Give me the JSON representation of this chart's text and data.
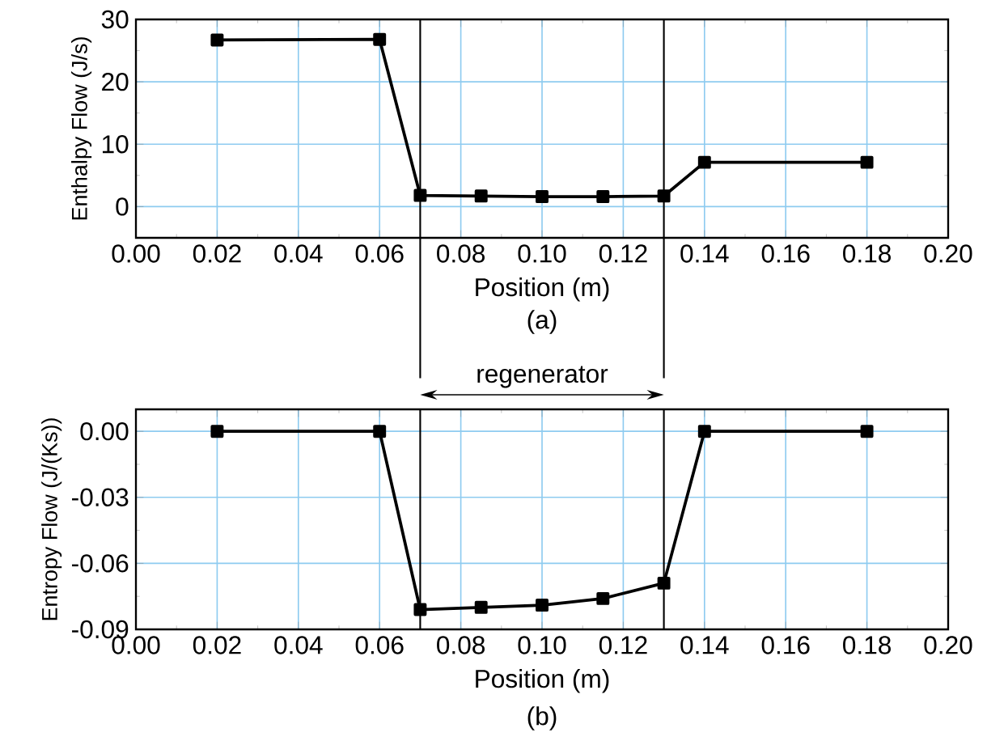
{
  "chart_data": [
    {
      "type": "line",
      "xlabel": "Position (m)",
      "ylabel": "Enthalpy Flow (J/s)",
      "x": [
        0.02,
        0.06,
        0.07,
        0.085,
        0.1,
        0.115,
        0.13,
        0.14,
        0.18
      ],
      "series": [
        {
          "color": "#000000",
          "values": [
            26.7,
            26.8,
            1.8,
            1.7,
            1.6,
            1.6,
            1.7,
            7.1,
            7.1
          ]
        }
      ],
      "xlim": [
        0,
        0.2
      ],
      "xticks": [
        {
          "value": 0,
          "label": "0.00"
        },
        0.02,
        0.04,
        0.06,
        0.08,
        {
          "value": 0.1,
          "label": "0.10"
        },
        0.12,
        0.14,
        0.16,
        0.18,
        {
          "value": 0.2,
          "label": "0.20"
        }
      ],
      "ylim": [
        -5,
        30
      ],
      "yticks": [
        0,
        10,
        20,
        30
      ],
      "ref_lines": [
        {
          "axis": "x",
          "value": 0.07,
          "color": "#000000"
        },
        {
          "axis": "x",
          "value": 0.13,
          "color": "#000000"
        }
      ],
      "annotations": [
        "(a)"
      ],
      "grid": true,
      "marker": "square",
      "line_style": "solid"
    },
    {
      "type": "line",
      "xlabel": "Position (m)",
      "ylabel": "Entropy Flow (J/(Ks))",
      "x": [
        0.02,
        0.06,
        0.07,
        0.085,
        0.1,
        0.115,
        0.13,
        0.14,
        0.18
      ],
      "series": [
        {
          "color": "#000000",
          "values": [
            0,
            0,
            -0.081,
            -0.08,
            -0.079,
            -0.076,
            -0.069,
            0,
            0
          ]
        }
      ],
      "xlim": [
        0,
        0.2
      ],
      "xticks": [
        {
          "value": 0,
          "label": "0.00"
        },
        0.02,
        0.04,
        0.06,
        0.08,
        {
          "value": 0.1,
          "label": "0.10"
        },
        0.12,
        0.14,
        0.16,
        0.18,
        {
          "value": 0.2,
          "label": "0.20"
        }
      ],
      "ylim": [
        -0.09,
        0.01
      ],
      "yticks": [
        {
          "value": -0.09,
          "label": "-0.09"
        },
        {
          "value": -0.06,
          "label": "-0.06"
        },
        {
          "value": -0.03,
          "label": "-0.03"
        },
        {
          "value": 0,
          "label": "0.00"
        }
      ],
      "ref_lines": [
        {
          "axis": "x",
          "value": 0.07,
          "color": "#000000"
        },
        {
          "axis": "x",
          "value": 0.13,
          "color": "#000000"
        }
      ],
      "annotations": [
        "regenerator",
        "(b)"
      ],
      "grid": true,
      "marker": "square",
      "line_style": "solid"
    }
  ]
}
